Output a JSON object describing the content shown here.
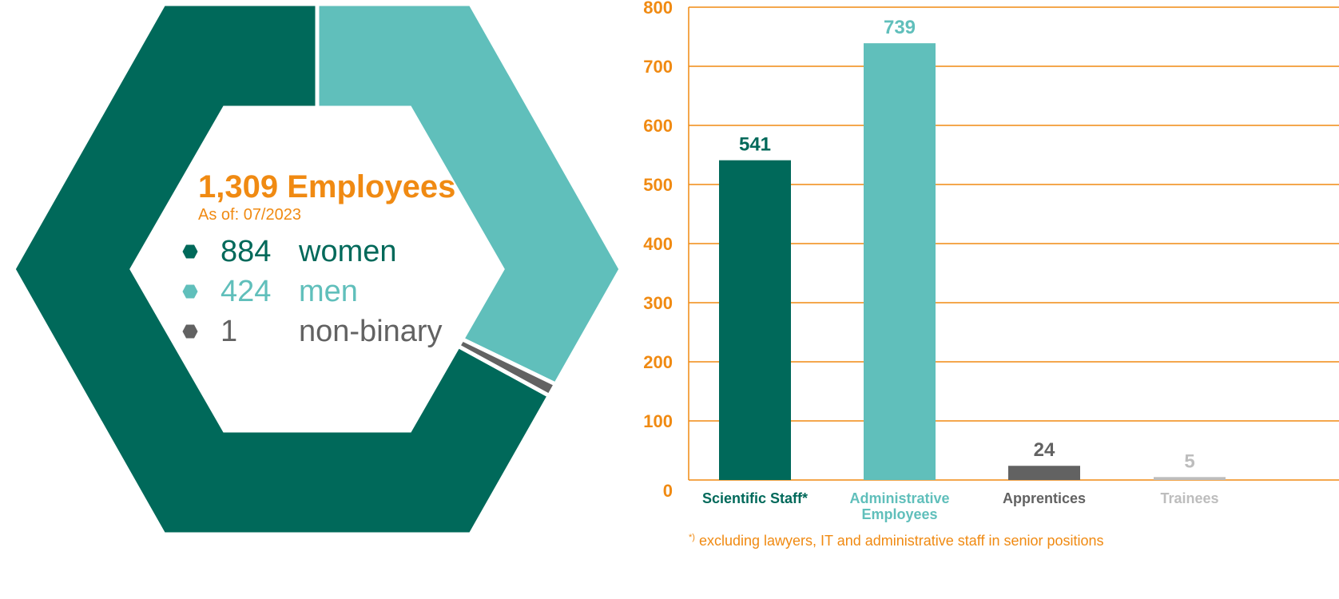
{
  "chart_data": [
    {
      "type": "pie",
      "shape": "hexagonal donut",
      "title": "1,309 Employees",
      "subtitle": "As of: 07/2023",
      "slices": [
        {
          "label": "women",
          "value": 884,
          "color": "#00695A"
        },
        {
          "label": "men",
          "value": 424,
          "color": "#60BFBB"
        },
        {
          "label": "non-binary",
          "value": 1,
          "color": "#626262"
        }
      ],
      "legend_position": "center"
    },
    {
      "type": "bar",
      "categories": [
        "Scientific Staff*",
        "Administrative Employees",
        "Apprentices",
        "Trainees"
      ],
      "values": [
        541,
        739,
        24,
        5
      ],
      "colors": [
        "#00695A",
        "#60BFBB",
        "#626262",
        "#BDBDBD"
      ],
      "ylim": [
        0,
        800
      ],
      "yticks": [
        0,
        100,
        200,
        300,
        400,
        500,
        600,
        700,
        800
      ],
      "grid": true,
      "axis_color": "#F08A12",
      "footnote": {
        "marker": "*)",
        "text": "excluding lawyers, IT and administrative staff in senior positions"
      }
    }
  ]
}
